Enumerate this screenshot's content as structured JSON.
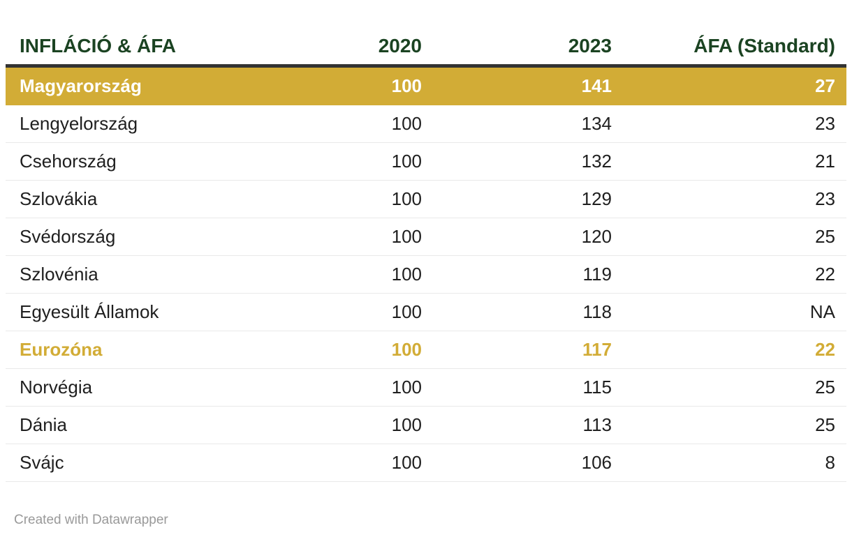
{
  "chart_data": {
    "type": "table",
    "title": "INFLÁCIÓ & ÁFA",
    "columns": [
      "INFLÁCIÓ & ÁFA",
      "2020",
      "2023",
      "ÁFA (Standard)"
    ],
    "rows": [
      {
        "label": "Magyarország",
        "values": [
          "100",
          "141",
          "27"
        ],
        "highlight": "row"
      },
      {
        "label": "Lengyelország",
        "values": [
          "100",
          "134",
          "23"
        ],
        "highlight": "none"
      },
      {
        "label": "Csehország",
        "values": [
          "100",
          "132",
          "21"
        ],
        "highlight": "none"
      },
      {
        "label": "Szlovákia",
        "values": [
          "100",
          "129",
          "23"
        ],
        "highlight": "none"
      },
      {
        "label": "Svédország",
        "values": [
          "100",
          "120",
          "25"
        ],
        "highlight": "none"
      },
      {
        "label": "Szlovénia",
        "values": [
          "100",
          "119",
          "22"
        ],
        "highlight": "none"
      },
      {
        "label": "Egyesült Államok",
        "values": [
          "100",
          "118",
          "NA"
        ],
        "highlight": "none"
      },
      {
        "label": "Eurozóna",
        "values": [
          "100",
          "117",
          "22"
        ],
        "highlight": "text"
      },
      {
        "label": "Norvégia",
        "values": [
          "100",
          "115",
          "25"
        ],
        "highlight": "none"
      },
      {
        "label": "Dánia",
        "values": [
          "100",
          "113",
          "25"
        ],
        "highlight": "none"
      },
      {
        "label": "Svájc",
        "values": [
          "100",
          "106",
          "8"
        ],
        "highlight": "none"
      }
    ],
    "layout": {
      "grid": "horizontal-row-separators",
      "header_rule": "thick-dark",
      "legend_position": "none"
    }
  },
  "colors": {
    "accent_gold": "#d2ac36",
    "header_green": "#1b4322",
    "header_rule_dark": "#333333",
    "row_separator": "#e9e9e9",
    "body_text": "#1f1f1f",
    "footer_text": "#999999",
    "highlight_row_text": "#ffffff"
  },
  "footer": {
    "attribution": "Created with Datawrapper"
  }
}
